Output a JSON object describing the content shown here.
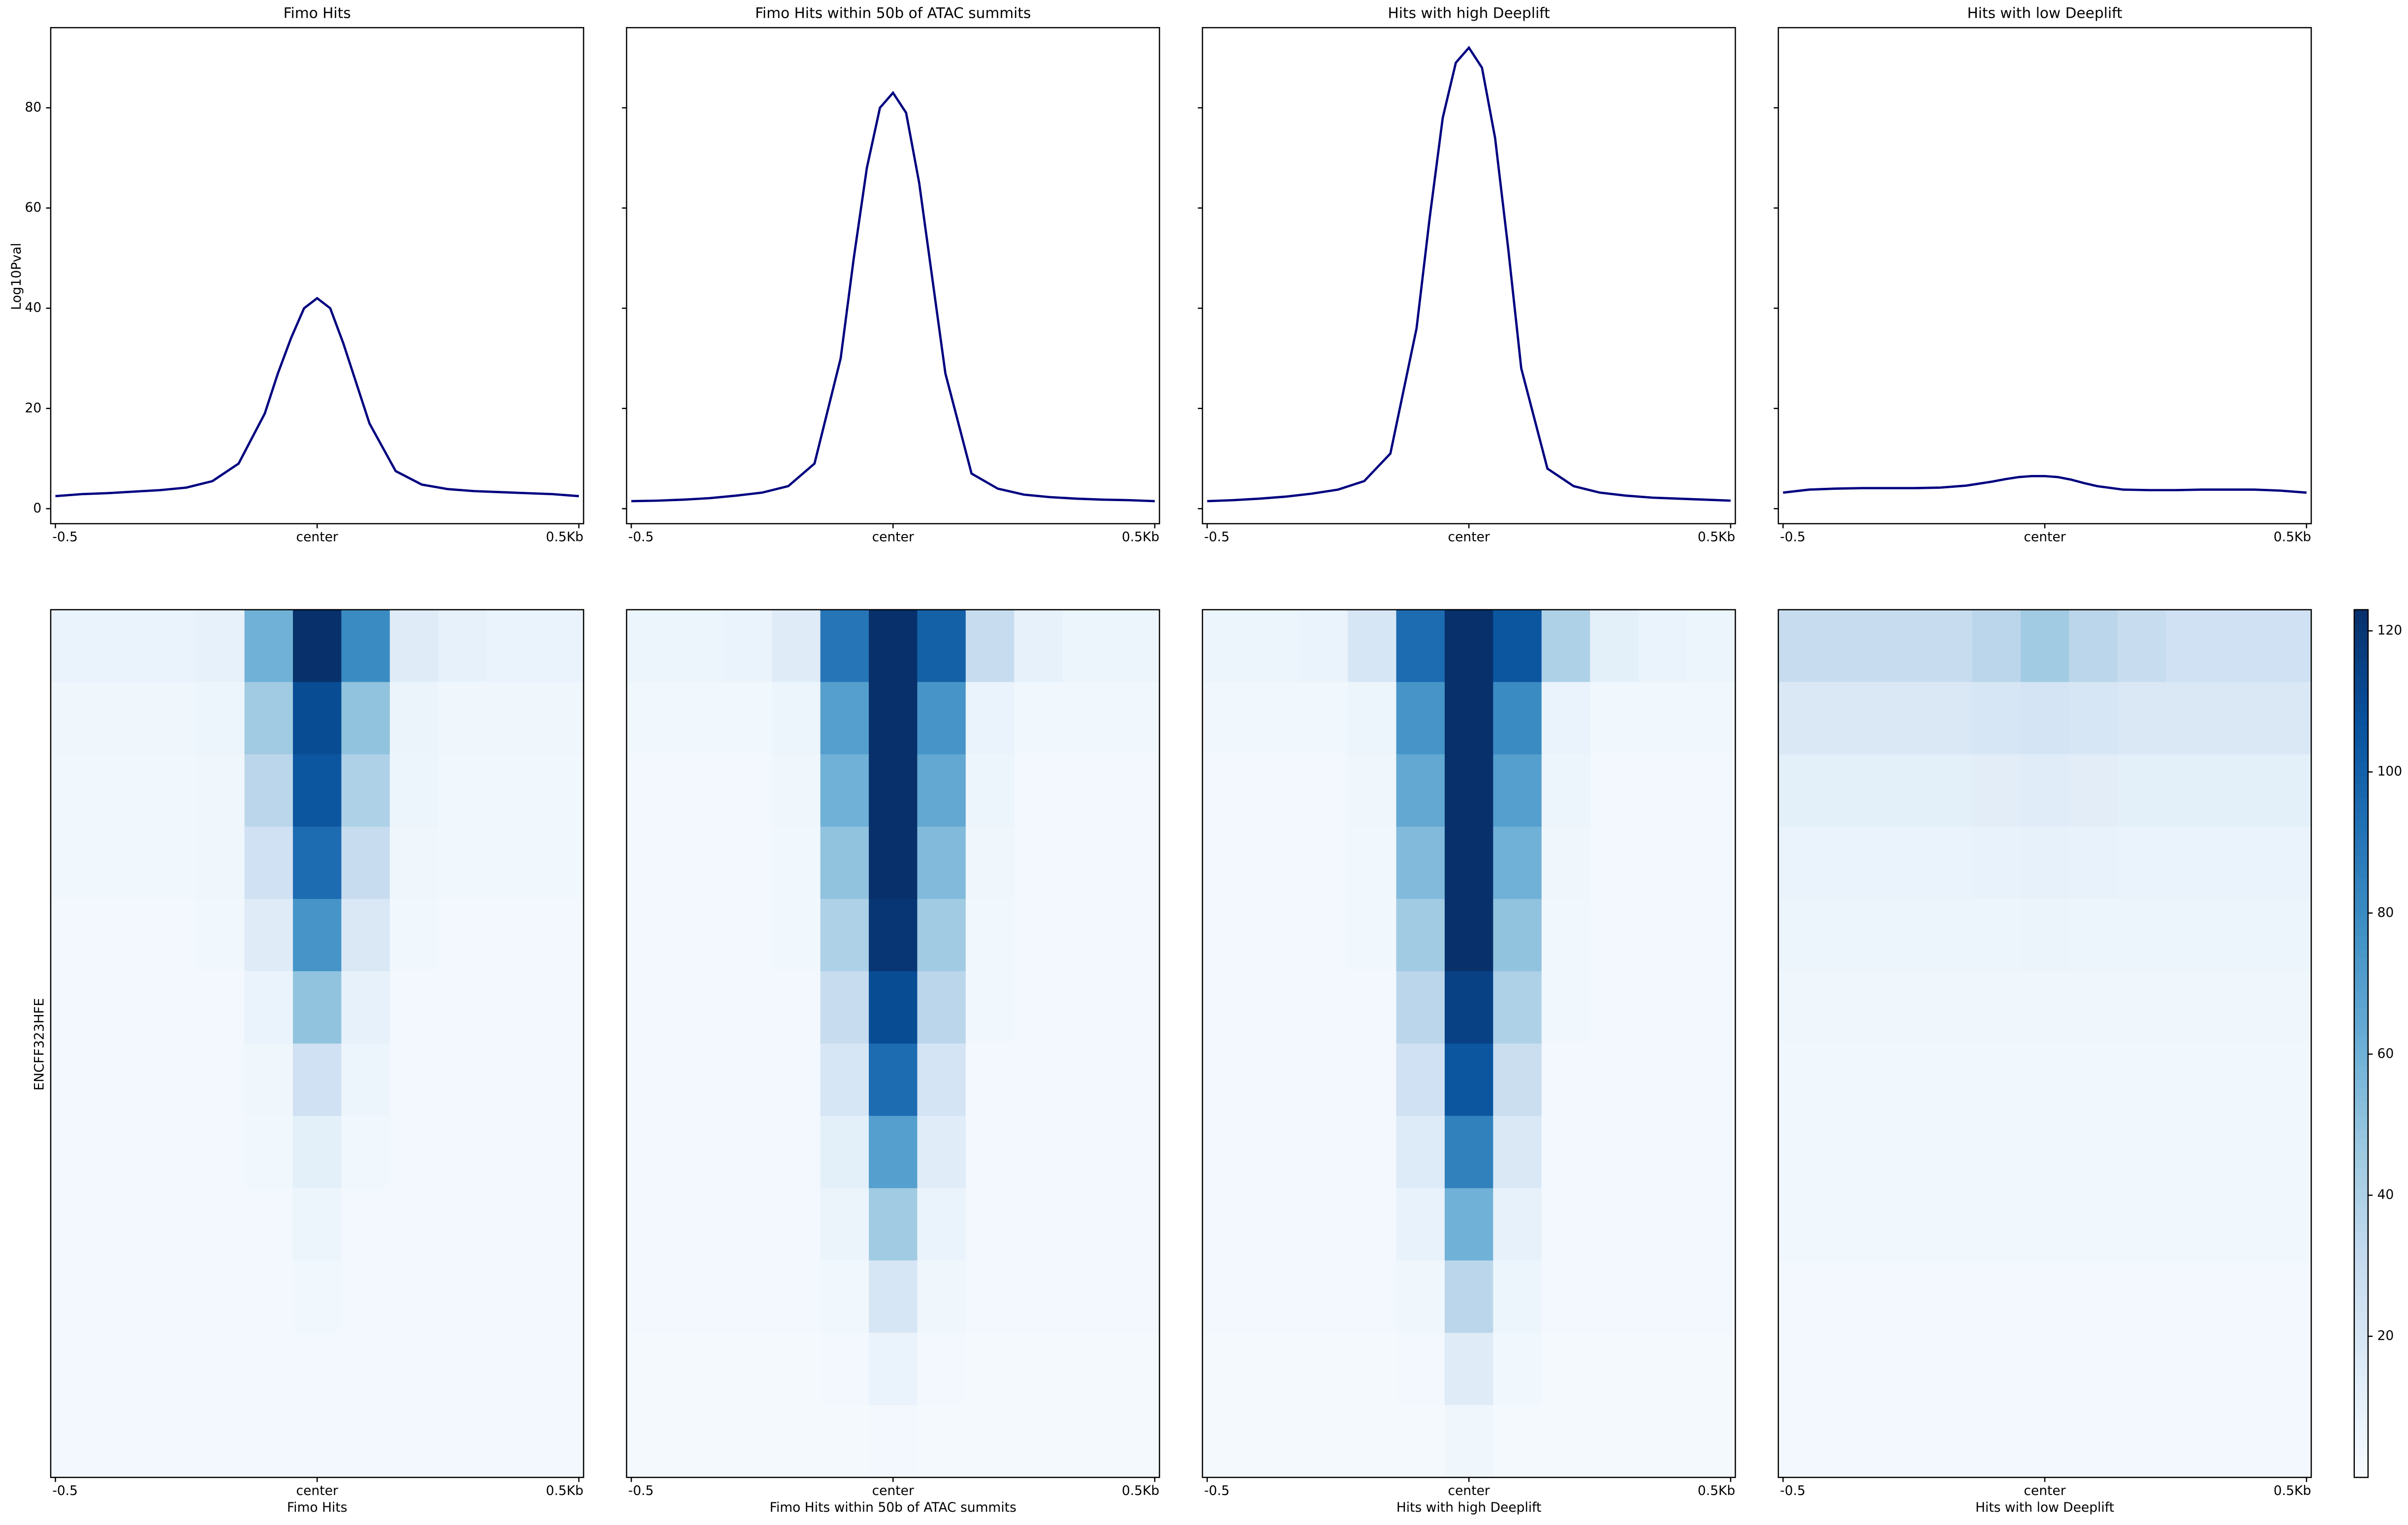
{
  "chart_data": [
    {
      "type": "line",
      "title": "Fimo Hits",
      "ylabel": "Log10Pval",
      "color": "#000080",
      "x": [
        -0.5,
        -0.45,
        -0.4,
        -0.35,
        -0.3,
        -0.25,
        -0.2,
        -0.15,
        -0.1,
        -0.075,
        -0.05,
        -0.025,
        0,
        0.025,
        0.05,
        0.075,
        0.1,
        0.15,
        0.2,
        0.25,
        0.3,
        0.35,
        0.4,
        0.45,
        0.5
      ],
      "values": [
        2.5,
        2.9,
        3.1,
        3.4,
        3.7,
        4.2,
        5.5,
        9,
        19,
        27,
        34,
        40,
        42,
        40,
        33,
        25,
        17,
        7.5,
        4.8,
        3.9,
        3.5,
        3.3,
        3.1,
        2.9,
        2.5
      ],
      "xlim": [
        -0.509,
        0.509
      ],
      "xticks": [
        -0.5,
        {
          "value": 0,
          "label": "center"
        },
        {
          "value": 0.5,
          "label": "0.5Kb"
        }
      ],
      "ylim": [
        -3,
        96
      ],
      "yticks": [
        0,
        20,
        40,
        60,
        80
      ]
    },
    {
      "type": "line",
      "title": "Fimo Hits within 50b of ATAC summits",
      "color": "#000080",
      "x": [
        -0.5,
        -0.45,
        -0.4,
        -0.35,
        -0.3,
        -0.25,
        -0.2,
        -0.15,
        -0.1,
        -0.075,
        -0.05,
        -0.025,
        0,
        0.025,
        0.05,
        0.075,
        0.1,
        0.15,
        0.2,
        0.25,
        0.3,
        0.35,
        0.4,
        0.45,
        0.5
      ],
      "values": [
        1.5,
        1.6,
        1.8,
        2.1,
        2.6,
        3.2,
        4.5,
        9,
        30,
        50,
        68,
        80,
        83,
        79,
        65,
        46,
        27,
        7,
        4,
        2.8,
        2.3,
        2,
        1.8,
        1.7,
        1.5
      ],
      "xlim": [
        -0.509,
        0.509
      ],
      "xticks": [
        -0.5,
        {
          "value": 0,
          "label": "center"
        },
        {
          "value": 0.5,
          "label": "0.5Kb"
        }
      ],
      "ylim": [
        -3,
        96
      ],
      "yticks": [
        0,
        20,
        40,
        60,
        80
      ],
      "yticklabels": false
    },
    {
      "type": "line",
      "title": "Hits with high Deeplift",
      "color": "#000080",
      "x": [
        -0.5,
        -0.45,
        -0.4,
        -0.35,
        -0.3,
        -0.25,
        -0.2,
        -0.15,
        -0.1,
        -0.075,
        -0.05,
        -0.025,
        0,
        0.025,
        0.05,
        0.075,
        0.1,
        0.15,
        0.2,
        0.25,
        0.3,
        0.35,
        0.4,
        0.45,
        0.5
      ],
      "values": [
        1.5,
        1.7,
        2,
        2.4,
        3,
        3.8,
        5.5,
        11,
        36,
        58,
        78,
        89,
        92,
        88,
        74,
        52,
        28,
        8,
        4.5,
        3.2,
        2.6,
        2.2,
        2,
        1.8,
        1.6
      ],
      "xlim": [
        -0.509,
        0.509
      ],
      "xticks": [
        -0.5,
        {
          "value": 0,
          "label": "center"
        },
        {
          "value": 0.5,
          "label": "0.5Kb"
        }
      ],
      "ylim": [
        -3,
        96
      ],
      "yticks": [
        0,
        20,
        40,
        60,
        80
      ],
      "yticklabels": false
    },
    {
      "type": "line",
      "title": "Hits with low Deeplift",
      "color": "#000080",
      "x": [
        -0.5,
        -0.45,
        -0.4,
        -0.35,
        -0.3,
        -0.25,
        -0.2,
        -0.15,
        -0.1,
        -0.075,
        -0.05,
        -0.025,
        0,
        0.025,
        0.05,
        0.075,
        0.1,
        0.15,
        0.2,
        0.25,
        0.3,
        0.35,
        0.4,
        0.45,
        0.5
      ],
      "values": [
        3.2,
        3.8,
        4.0,
        4.1,
        4.1,
        4.1,
        4.2,
        4.6,
        5.4,
        5.9,
        6.3,
        6.5,
        6.5,
        6.3,
        5.8,
        5.1,
        4.5,
        3.8,
        3.7,
        3.7,
        3.8,
        3.8,
        3.8,
        3.6,
        3.2
      ],
      "xlim": [
        -0.509,
        0.509
      ],
      "xticks": [
        -0.5,
        {
          "value": 0,
          "label": "center"
        },
        {
          "value": 0.5,
          "label": "0.5Kb"
        }
      ],
      "ylim": [
        -3,
        96
      ],
      "yticks": [
        0,
        20,
        40,
        60,
        80
      ],
      "yticklabels": false
    },
    {
      "type": "heatmap",
      "xlabel": "Fimo Hits",
      "ylabel": "ENCFF323HFE",
      "colormap": "Blues",
      "clim": [
        0,
        123
      ],
      "xlim": [
        -0.509,
        0.509
      ],
      "xticks": [
        -0.5,
        {
          "value": 0,
          "label": "center"
        },
        {
          "value": 0.5,
          "label": "0.5Kb"
        }
      ],
      "matrix": [
        [
          8,
          8,
          8,
          10,
          60,
          123,
          80,
          15,
          10,
          8,
          8
        ],
        [
          5,
          5,
          5,
          6,
          45,
          110,
          50,
          7,
          5,
          5,
          5
        ],
        [
          4,
          4,
          4,
          5,
          35,
          105,
          40,
          6,
          4,
          4,
          4
        ],
        [
          4,
          4,
          4,
          5,
          25,
          95,
          30,
          5,
          4,
          4,
          4
        ],
        [
          3,
          3,
          3,
          4,
          15,
          75,
          18,
          4,
          3,
          3,
          3
        ],
        [
          3,
          3,
          3,
          3,
          8,
          50,
          10,
          3,
          3,
          3,
          3
        ],
        [
          3,
          3,
          3,
          3,
          5,
          25,
          6,
          3,
          3,
          3,
          3
        ],
        [
          3,
          3,
          3,
          3,
          4,
          12,
          4,
          3,
          3,
          3,
          3
        ],
        [
          3,
          3,
          3,
          3,
          3,
          6,
          3,
          3,
          3,
          3,
          3
        ],
        [
          3,
          3,
          3,
          3,
          3,
          4,
          3,
          3,
          3,
          3,
          3
        ],
        [
          3,
          3,
          3,
          3,
          3,
          3,
          3,
          3,
          3,
          3,
          3
        ],
        [
          3,
          3,
          3,
          3,
          3,
          3,
          3,
          3,
          3,
          3,
          3
        ]
      ]
    },
    {
      "type": "heatmap",
      "xlabel": "Fimo Hits within 50b of ATAC summits",
      "colormap": "Blues",
      "clim": [
        0,
        123
      ],
      "xlim": [
        -0.509,
        0.509
      ],
      "xticks": [
        -0.5,
        {
          "value": 0,
          "label": "center"
        },
        {
          "value": 0.5,
          "label": "0.5Kb"
        }
      ],
      "matrix": [
        [
          6,
          6,
          8,
          15,
          90,
          123,
          100,
          30,
          10,
          6,
          6
        ],
        [
          4,
          4,
          4,
          6,
          70,
          123,
          75,
          8,
          4,
          4,
          4
        ],
        [
          3,
          3,
          3,
          5,
          60,
          123,
          65,
          6,
          3,
          3,
          3
        ],
        [
          3,
          3,
          3,
          4,
          50,
          123,
          55,
          5,
          3,
          3,
          3
        ],
        [
          3,
          3,
          3,
          4,
          40,
          120,
          45,
          4,
          3,
          3,
          3
        ],
        [
          3,
          3,
          3,
          3,
          30,
          110,
          35,
          4,
          3,
          3,
          3
        ],
        [
          3,
          3,
          3,
          3,
          20,
          95,
          22,
          3,
          3,
          3,
          3
        ],
        [
          3,
          3,
          3,
          3,
          12,
          70,
          14,
          3,
          3,
          3,
          3
        ],
        [
          3,
          3,
          3,
          3,
          7,
          45,
          8,
          3,
          3,
          3,
          3
        ],
        [
          3,
          3,
          3,
          3,
          4,
          20,
          5,
          3,
          3,
          3,
          3
        ],
        [
          2,
          2,
          2,
          2,
          3,
          8,
          3,
          2,
          2,
          2,
          2
        ],
        [
          2,
          2,
          2,
          2,
          2,
          3,
          2,
          2,
          2,
          2,
          2
        ]
      ]
    },
    {
      "type": "heatmap",
      "xlabel": "Hits with high Deeplift",
      "colormap": "Blues",
      "clim": [
        0,
        123
      ],
      "xlim": [
        -0.509,
        0.509
      ],
      "xticks": [
        -0.5,
        {
          "value": 0,
          "label": "center"
        },
        {
          "value": 0.5,
          "label": "0.5Kb"
        }
      ],
      "matrix": [
        [
          6,
          6,
          8,
          20,
          95,
          123,
          105,
          40,
          12,
          8,
          6
        ],
        [
          4,
          4,
          4,
          6,
          75,
          123,
          80,
          8,
          4,
          4,
          4
        ],
        [
          3,
          3,
          3,
          5,
          65,
          123,
          70,
          6,
          3,
          3,
          3
        ],
        [
          3,
          3,
          3,
          4,
          55,
          123,
          60,
          5,
          3,
          3,
          3
        ],
        [
          3,
          3,
          3,
          4,
          45,
          123,
          50,
          4,
          3,
          3,
          3
        ],
        [
          3,
          3,
          3,
          3,
          35,
          115,
          40,
          4,
          3,
          3,
          3
        ],
        [
          3,
          3,
          3,
          3,
          25,
          105,
          28,
          3,
          3,
          3,
          3
        ],
        [
          3,
          3,
          3,
          3,
          16,
          85,
          18,
          3,
          3,
          3,
          3
        ],
        [
          3,
          3,
          3,
          3,
          9,
          60,
          10,
          3,
          3,
          3,
          3
        ],
        [
          3,
          3,
          3,
          3,
          5,
          35,
          6,
          3,
          3,
          3,
          3
        ],
        [
          2,
          2,
          2,
          2,
          3,
          15,
          4,
          2,
          2,
          2,
          2
        ],
        [
          2,
          2,
          2,
          2,
          2,
          5,
          2,
          2,
          2,
          2,
          2
        ]
      ]
    },
    {
      "type": "heatmap",
      "xlabel": "Hits with low Deeplift",
      "colormap": "Blues",
      "clim": [
        0,
        123
      ],
      "xlim": [
        -0.509,
        0.509
      ],
      "xticks": [
        -0.5,
        {
          "value": 0,
          "label": "center"
        },
        {
          "value": 0.5,
          "label": "0.5Kb"
        }
      ],
      "colorbar": true,
      "cticks": [
        20,
        40,
        60,
        80,
        100,
        120
      ],
      "matrix": [
        [
          30,
          30,
          30,
          30,
          35,
          45,
          35,
          30,
          25,
          25,
          25
        ],
        [
          18,
          18,
          18,
          18,
          20,
          22,
          20,
          18,
          18,
          18,
          18
        ],
        [
          12,
          12,
          12,
          12,
          13,
          14,
          13,
          12,
          12,
          12,
          12
        ],
        [
          8,
          8,
          8,
          8,
          9,
          10,
          9,
          8,
          8,
          8,
          8
        ],
        [
          6,
          6,
          6,
          6,
          6,
          7,
          6,
          6,
          6,
          6,
          6
        ],
        [
          5,
          5,
          5,
          5,
          5,
          5,
          5,
          5,
          5,
          5,
          5
        ],
        [
          4,
          4,
          4,
          4,
          4,
          4,
          4,
          4,
          4,
          4,
          4
        ],
        [
          4,
          4,
          4,
          4,
          4,
          4,
          4,
          4,
          4,
          4,
          4
        ],
        [
          4,
          4,
          4,
          4,
          4,
          4,
          4,
          4,
          4,
          4,
          4
        ],
        [
          3,
          3,
          3,
          3,
          3,
          3,
          3,
          3,
          3,
          3,
          3
        ],
        [
          3,
          3,
          3,
          3,
          3,
          3,
          3,
          3,
          3,
          3,
          3
        ],
        [
          3,
          3,
          3,
          3,
          3,
          3,
          3,
          3,
          3,
          3,
          3
        ]
      ]
    }
  ]
}
